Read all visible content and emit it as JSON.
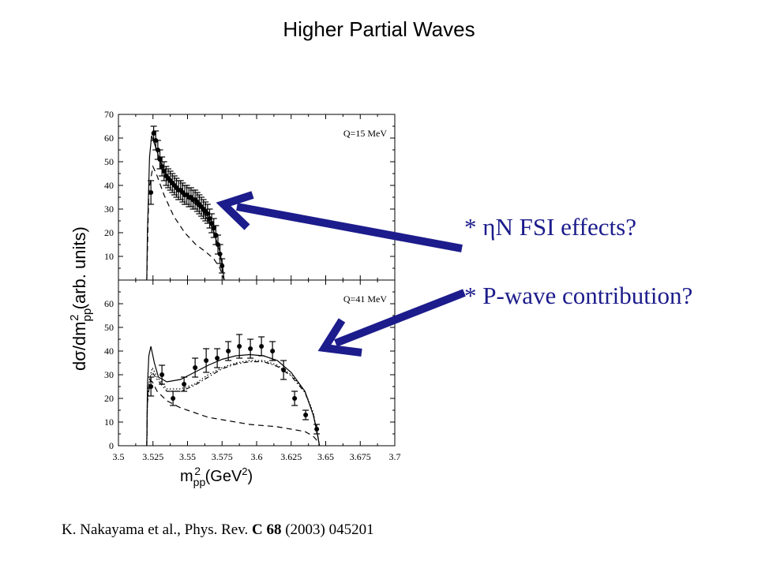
{
  "slide_title": "Higher Partial Waves",
  "annotations": {
    "first": "* ηN FSI effects?",
    "second": "* P-wave contribution?"
  },
  "citation": {
    "prefix": "K. Nakayama et al., Phys. Rev. ",
    "journal": "C",
    "volume": "68",
    "suffix": " (2003) 045201"
  },
  "colors": {
    "arrow": "#1c1c8c",
    "plot": "#000000"
  },
  "chart_data": {
    "type": "scatter",
    "xlabel_base": "m",
    "xlabel_sub": "pp",
    "xlabel_sup": "2",
    "xlabel_unit_open": " (GeV",
    "xlabel_unit_sup": "2",
    "xlabel_unit_close": ")",
    "ylabel_base": "dσ/dm",
    "ylabel_sub": "pp",
    "ylabel_sup": "2",
    "ylabel_unit": " (arb. units)",
    "xlim": [
      3.5,
      3.7
    ],
    "x_ticks": [
      "3.5",
      "3.525",
      "3.55",
      "3.575",
      "3.6",
      "3.625",
      "3.65",
      "3.675",
      "3.7"
    ],
    "panels": [
      {
        "label": "Q=15 MeV",
        "ylim": [
          0,
          70
        ],
        "y_ticks": [
          "10",
          "20",
          "30",
          "40",
          "50",
          "60",
          "70"
        ],
        "points": [
          {
            "x": 3.5235,
            "y": 37,
            "e": 5
          },
          {
            "x": 3.5255,
            "y": 62,
            "e": 3
          },
          {
            "x": 3.527,
            "y": 59,
            "e": 4
          },
          {
            "x": 3.5285,
            "y": 55,
            "e": 4
          },
          {
            "x": 3.53,
            "y": 51,
            "e": 4
          },
          {
            "x": 3.5315,
            "y": 48,
            "e": 4
          },
          {
            "x": 3.533,
            "y": 46,
            "e": 4
          },
          {
            "x": 3.5345,
            "y": 44,
            "e": 4
          },
          {
            "x": 3.536,
            "y": 43,
            "e": 4
          },
          {
            "x": 3.5375,
            "y": 42,
            "e": 4
          },
          {
            "x": 3.539,
            "y": 41,
            "e": 4
          },
          {
            "x": 3.5405,
            "y": 40,
            "e": 4
          },
          {
            "x": 3.542,
            "y": 39,
            "e": 4
          },
          {
            "x": 3.5435,
            "y": 38,
            "e": 4
          },
          {
            "x": 3.545,
            "y": 38,
            "e": 4
          },
          {
            "x": 3.5465,
            "y": 37,
            "e": 4
          },
          {
            "x": 3.548,
            "y": 36,
            "e": 4
          },
          {
            "x": 3.5495,
            "y": 36,
            "e": 4
          },
          {
            "x": 3.551,
            "y": 35,
            "e": 4
          },
          {
            "x": 3.5525,
            "y": 35,
            "e": 4
          },
          {
            "x": 3.554,
            "y": 34,
            "e": 4
          },
          {
            "x": 3.5555,
            "y": 34,
            "e": 4
          },
          {
            "x": 3.557,
            "y": 33,
            "e": 4
          },
          {
            "x": 3.5585,
            "y": 32,
            "e": 4
          },
          {
            "x": 3.56,
            "y": 31,
            "e": 4
          },
          {
            "x": 3.5615,
            "y": 30,
            "e": 4
          },
          {
            "x": 3.563,
            "y": 29,
            "e": 4
          },
          {
            "x": 3.5645,
            "y": 28,
            "e": 4
          },
          {
            "x": 3.566,
            "y": 26,
            "e": 4
          },
          {
            "x": 3.5675,
            "y": 24,
            "e": 4
          },
          {
            "x": 3.569,
            "y": 22,
            "e": 4
          },
          {
            "x": 3.5705,
            "y": 19,
            "e": 4
          },
          {
            "x": 3.572,
            "y": 15,
            "e": 4
          },
          {
            "x": 3.5735,
            "y": 11,
            "e": 4
          },
          {
            "x": 3.575,
            "y": 6,
            "e": 3
          }
        ],
        "curves": [
          {
            "style": "solid",
            "x": [
              3.5205,
              3.521,
              3.5225,
              3.524,
              3.527,
              3.532,
              3.54,
              3.55,
              3.56,
              3.568,
              3.5735,
              3.5755,
              3.5765
            ],
            "y": [
              0,
              20,
              52,
              61,
              56,
              47,
              40,
              35,
              30,
              22,
              12,
              5,
              0
            ]
          },
          {
            "style": "dashed",
            "x": [
              3.5205,
              3.522,
              3.525,
              3.528,
              3.533,
              3.54,
              3.548,
              3.556,
              3.563,
              3.569,
              3.5735,
              3.5765
            ],
            "y": [
              0,
              38,
              48,
              44,
              36,
              27,
              20,
              15,
              12,
              9,
              5,
              0
            ]
          }
        ]
      },
      {
        "label": "Q=41 MeV",
        "ylim": [
          0,
          70
        ],
        "y_ticks": [
          "0",
          "10",
          "20",
          "30",
          "40",
          "50",
          "60"
        ],
        "points": [
          {
            "x": 3.5235,
            "y": 25,
            "e": 4
          },
          {
            "x": 3.5315,
            "y": 30,
            "e": 4
          },
          {
            "x": 3.5395,
            "y": 20,
            "e": 3
          },
          {
            "x": 3.5475,
            "y": 26,
            "e": 3
          },
          {
            "x": 3.5555,
            "y": 33,
            "e": 4
          },
          {
            "x": 3.5635,
            "y": 36,
            "e": 5
          },
          {
            "x": 3.5715,
            "y": 37,
            "e": 4
          },
          {
            "x": 3.5795,
            "y": 40,
            "e": 4
          },
          {
            "x": 3.5875,
            "y": 42,
            "e": 5
          },
          {
            "x": 3.5955,
            "y": 41,
            "e": 4
          },
          {
            "x": 3.6035,
            "y": 42,
            "e": 4
          },
          {
            "x": 3.6115,
            "y": 40,
            "e": 4
          },
          {
            "x": 3.6195,
            "y": 32,
            "e": 4
          },
          {
            "x": 3.6275,
            "y": 20,
            "e": 3
          },
          {
            "x": 3.6355,
            "y": 13,
            "e": 2
          },
          {
            "x": 3.6435,
            "y": 7,
            "e": 2
          }
        ],
        "curves": [
          {
            "style": "solid",
            "x": [
              3.5205,
              3.521,
              3.522,
              3.5235,
              3.526,
              3.529,
              3.535,
              3.545,
              3.555,
              3.565,
              3.575,
              3.585,
              3.595,
              3.605,
              3.615,
              3.625,
              3.635,
              3.641,
              3.644,
              3.6455
            ],
            "y": [
              0,
              25,
              38,
              42,
              35,
              29,
              27,
              28,
              31,
              34,
              36.5,
              38,
              38.5,
              38,
              36,
              31,
              23,
              13,
              5,
              0
            ]
          },
          {
            "style": "dotted",
            "x": [
              3.5205,
              3.521,
              3.5225,
              3.5245,
              3.528,
              3.535,
              3.545,
              3.555,
              3.565,
              3.575,
              3.585,
              3.595,
              3.605,
              3.615,
              3.625,
              3.635,
              3.641,
              3.644,
              3.6455
            ],
            "y": [
              0,
              20,
              28,
              33,
              29,
              24,
              24,
              26,
              30,
              33,
              35,
              36,
              36,
              34,
              30,
              23,
              14,
              5,
              0
            ]
          },
          {
            "style": "dashdot",
            "x": [
              3.5205,
              3.521,
              3.5225,
              3.5245,
              3.528,
              3.535,
              3.545,
              3.555,
              3.565,
              3.575,
              3.585,
              3.595,
              3.605,
              3.615,
              3.625,
              3.635,
              3.641,
              3.644,
              3.6455
            ],
            "y": [
              0,
              18,
              26,
              31,
              28,
              23,
              23,
              25.5,
              29,
              32.5,
              34.5,
              35.5,
              35.5,
              33.5,
              29.5,
              22.5,
              13.5,
              5,
              0
            ]
          },
          {
            "style": "dashed",
            "x": [
              3.5205,
              3.521,
              3.5225,
              3.5245,
              3.528,
              3.535,
              3.545,
              3.555,
              3.565,
              3.575,
              3.585,
              3.595,
              3.605,
              3.615,
              3.625,
              3.635,
              3.641,
              3.644,
              3.6455
            ],
            "y": [
              0,
              20,
              28,
              27,
              23,
              19,
              16,
              14,
              12,
              11,
              10,
              9,
              8.5,
              8,
              7,
              6,
              4,
              2,
              0
            ]
          }
        ]
      }
    ]
  }
}
